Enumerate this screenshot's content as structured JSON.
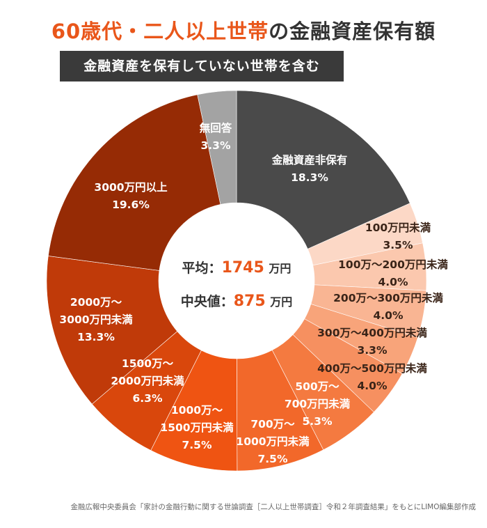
{
  "chart_data": {
    "type": "pie",
    "donut": true,
    "title": "60歳代・二人以上世帯の金融資産保有額",
    "title_highlight": "60歳代・二人以上世帯",
    "title_rest": "の金融資産保有額",
    "subtitle": "金融資産を保有していない世帯を含む",
    "start": "top, clockwise",
    "slices": [
      {
        "label": [
          "金融資産非保有"
        ],
        "value": 18.3,
        "value_label": "18.3%",
        "color": "#4a4a4a"
      },
      {
        "label": [
          "100万円未満"
        ],
        "value": 3.5,
        "value_label": "3.5%",
        "color": "#fcd8c6"
      },
      {
        "label": [
          "100万～200万円未満"
        ],
        "value": 4.0,
        "value_label": "4.0%",
        "color": "#fbc8ae"
      },
      {
        "label": [
          "200万～300万円未満"
        ],
        "value": 4.0,
        "value_label": "4.0%",
        "color": "#f9b593"
      },
      {
        "label": [
          "300万～400万円未満"
        ],
        "value": 3.3,
        "value_label": "3.3%",
        "color": "#f8a47a"
      },
      {
        "label": [
          "400万～500万円未満"
        ],
        "value": 4.0,
        "value_label": "4.0%",
        "color": "#f69060"
      },
      {
        "label": [
          "500万～",
          "700万円未満"
        ],
        "value": 5.3,
        "value_label": "5.3%",
        "color": "#f47a40"
      },
      {
        "label": [
          "700万～",
          "1000万円未満"
        ],
        "value": 7.5,
        "value_label": "7.5%",
        "color": "#f2682a"
      },
      {
        "label": [
          "1000万～",
          "1500万円未満"
        ],
        "value": 7.5,
        "value_label": "7.5%",
        "color": "#ef5412"
      },
      {
        "label": [
          "1500万～",
          "2000万円未満"
        ],
        "value": 6.3,
        "value_label": "6.3%",
        "color": "#d9470c"
      },
      {
        "label": [
          "2000万～",
          "3000万円未満"
        ],
        "value": 13.3,
        "value_label": "13.3%",
        "color": "#c03a09"
      },
      {
        "label": [
          "3000万円以上"
        ],
        "value": 19.6,
        "value_label": "19.6%",
        "color": "#962b05"
      },
      {
        "label": [
          "無回答"
        ],
        "value": 3.3,
        "value_label": "3.3%",
        "color": "#a3a3a3"
      }
    ],
    "center": {
      "mean_label": "平均：",
      "mean_value": "1745",
      "mean_unit": "万円",
      "median_label": "中央値：",
      "median_value": "875",
      "median_unit": "万円"
    },
    "source": "金融広報中央委員会「家計の金融行動に関する世論調査［二人以上世帯調査］令和２年調査結果」をもとにLIMO編集部作成",
    "accent_color": "#e9561a"
  }
}
